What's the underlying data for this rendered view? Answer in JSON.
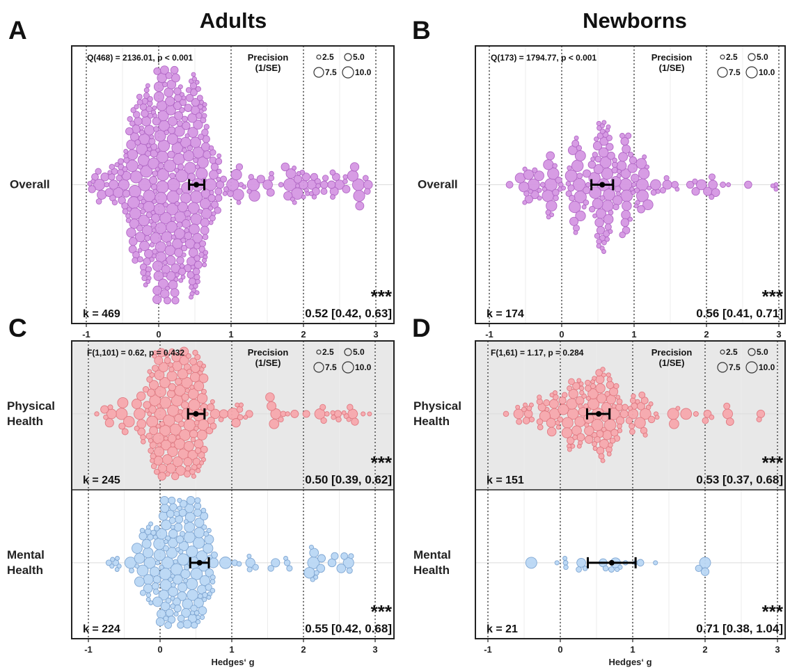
{
  "column_titles": [
    "Adults",
    "Newborns"
  ],
  "chart_data": [
    {
      "type": "scatter",
      "panel": "A",
      "subtype": "beeswarm",
      "xlabel": "Hedges‘ g",
      "xticks": [
        "-1",
        "0",
        "1",
        "2",
        "3"
      ],
      "xlim": [
        -1,
        3
      ],
      "heterogeneity": "Q(468) = 2136.01, p < 0.001",
      "precision_legend": {
        "title": "Precision\n(1/SE)",
        "sizes": [
          "2.5",
          "5.0",
          "7.5",
          "10.0"
        ]
      },
      "rows": [
        {
          "label": "Overall",
          "k": "k = 469",
          "estimate": 0.52,
          "ci": [
            0.42,
            0.63
          ],
          "estimate_text": "0.52 [0.42, 0.63]",
          "significance": "***",
          "color": "#d597e3",
          "edge": "#b268c6",
          "shaded": false,
          "n_points": 469,
          "range": [
            -0.95,
            2.9
          ],
          "center": 0.15,
          "spread": 0.55
        }
      ]
    },
    {
      "type": "scatter",
      "panel": "B",
      "subtype": "beeswarm",
      "xlabel": "Hedges‘ g",
      "xticks": [
        "-1",
        "0",
        "1",
        "2",
        "3"
      ],
      "xlim": [
        -1,
        3
      ],
      "heterogeneity": "Q(173) = 1794.77, p < 0.001",
      "precision_legend": {
        "title": "Precision\n(1/SE)",
        "sizes": [
          "2.5",
          "5.0",
          "7.5",
          "10.0"
        ]
      },
      "rows": [
        {
          "label": "Overall",
          "k": "k = 174",
          "estimate": 0.56,
          "ci": [
            0.41,
            0.71
          ],
          "estimate_text": "0.56 [0.41, 0.71]",
          "significance": "***",
          "color": "#d597e3",
          "edge": "#b268c6",
          "shaded": false,
          "n_points": 174,
          "range": [
            -0.75,
            3.0
          ],
          "center": 0.5,
          "spread": 0.8
        }
      ]
    },
    {
      "type": "scatter",
      "panel": "C",
      "subtype": "beeswarm",
      "xlabel": "Hedges‘ g",
      "xticks": [
        "-1",
        "0",
        "1",
        "2",
        "3"
      ],
      "xlim": [
        -1,
        3
      ],
      "heterogeneity": "F(1,101) = 0.62, p = 0.432",
      "precision_legend": {
        "title": "Precision\n(1/SE)",
        "sizes": [
          "2.5",
          "5.0",
          "7.5",
          "10.0"
        ]
      },
      "rows": [
        {
          "label": "Physical\nHealth",
          "k": "k = 245",
          "estimate": 0.5,
          "ci": [
            0.39,
            0.62
          ],
          "estimate_text": "0.50 [0.39, 0.62]",
          "significance": "***",
          "color": "#f7a8ad",
          "edge": "#e07a82",
          "shaded": true,
          "n_points": 245,
          "range": [
            -0.9,
            2.95
          ],
          "center": 0.25,
          "spread": 0.45
        },
        {
          "label": "Mental\nHealth",
          "k": "k = 224",
          "estimate": 0.55,
          "ci": [
            0.42,
            0.68
          ],
          "estimate_text": "0.55 [0.42, 0.68]",
          "significance": "***",
          "color": "#b9d7f4",
          "edge": "#7fa6d2",
          "shaded": false,
          "n_points": 224,
          "range": [
            -0.75,
            2.8
          ],
          "center": 0.3,
          "spread": 0.45
        }
      ]
    },
    {
      "type": "scatter",
      "panel": "D",
      "subtype": "beeswarm",
      "xlabel": "Hedges‘ g",
      "xticks": [
        "-1",
        "0",
        "1",
        "2",
        "3"
      ],
      "xlim": [
        -1,
        3
      ],
      "heterogeneity": "F(1,61) = 1.17, p = 0.284",
      "precision_legend": {
        "title": "Precision\n(1/SE)",
        "sizes": [
          "2.5",
          "5.0",
          "7.5",
          "10.0"
        ]
      },
      "rows": [
        {
          "label": "Physical\nHealth",
          "k": "k = 151",
          "estimate": 0.53,
          "ci": [
            0.37,
            0.68
          ],
          "estimate_text": "0.53 [0.37, 0.68]",
          "significance": "***",
          "color": "#f7a8ad",
          "edge": "#e07a82",
          "shaded": true,
          "n_points": 151,
          "range": [
            -0.75,
            3.0
          ],
          "center": 0.5,
          "spread": 0.75
        },
        {
          "label": "Mental\nHealth",
          "k": "k = 21",
          "estimate": 0.71,
          "ci": [
            0.38,
            1.04
          ],
          "estimate_text": "0.71 [0.38, 1.04]",
          "significance": "***",
          "color": "#b9d7f4",
          "edge": "#7fa6d2",
          "shaded": false,
          "n_points": 21,
          "range": [
            -0.7,
            2.0
          ],
          "center": 0.7,
          "spread": 0.9
        }
      ]
    }
  ]
}
